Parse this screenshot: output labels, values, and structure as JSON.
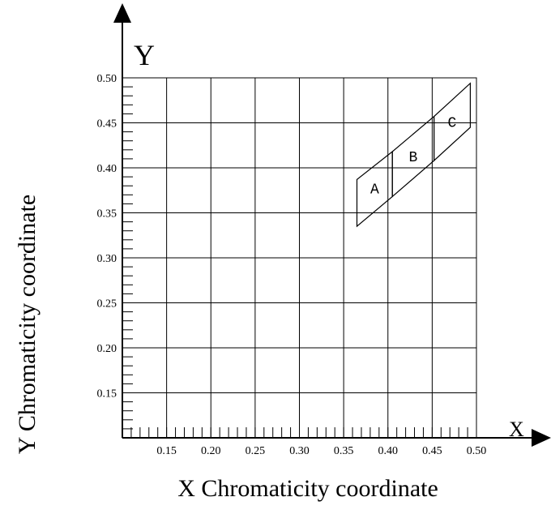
{
  "chart_data": {
    "type": "scatter",
    "title": "",
    "xlabel": "X  Chromaticity coordinate",
    "ylabel": "Y  Chromaticity coordinate",
    "x_axis_letter": "X",
    "y_axis_letter": "Y",
    "xlim": [
      0.1,
      0.5
    ],
    "ylim": [
      0.1,
      0.5
    ],
    "x_ticks": [
      {
        "value": 0.15,
        "label": "0.15"
      },
      {
        "value": 0.2,
        "label": "0.20"
      },
      {
        "value": 0.25,
        "label": "0.25"
      },
      {
        "value": 0.3,
        "label": "0.30"
      },
      {
        "value": 0.35,
        "label": "0.35"
      },
      {
        "value": 0.4,
        "label": "0.40"
      },
      {
        "value": 0.45,
        "label": "0.45"
      },
      {
        "value": 0.5,
        "label": "0.50"
      }
    ],
    "y_ticks": [
      {
        "value": 0.15,
        "label": "0.15"
      },
      {
        "value": 0.2,
        "label": "0.20"
      },
      {
        "value": 0.25,
        "label": "0.25"
      },
      {
        "value": 0.3,
        "label": "0.30"
      },
      {
        "value": 0.35,
        "label": "0.35"
      },
      {
        "value": 0.4,
        "label": "0.40"
      },
      {
        "value": 0.45,
        "label": "0.45"
      },
      {
        "value": 0.5,
        "label": "0.50"
      }
    ],
    "grid": true,
    "regions": [
      {
        "label": "A",
        "polygon": [
          [
            0.365,
            0.335
          ],
          [
            0.365,
            0.387
          ],
          [
            0.405,
            0.418
          ],
          [
            0.405,
            0.368
          ]
        ]
      },
      {
        "label": "B",
        "polygon": [
          [
            0.405,
            0.368
          ],
          [
            0.405,
            0.418
          ],
          [
            0.452,
            0.457
          ],
          [
            0.452,
            0.408
          ]
        ]
      },
      {
        "label": "C",
        "polygon": [
          [
            0.452,
            0.408
          ],
          [
            0.452,
            0.457
          ],
          [
            0.493,
            0.494
          ],
          [
            0.493,
            0.445
          ]
        ]
      }
    ]
  }
}
